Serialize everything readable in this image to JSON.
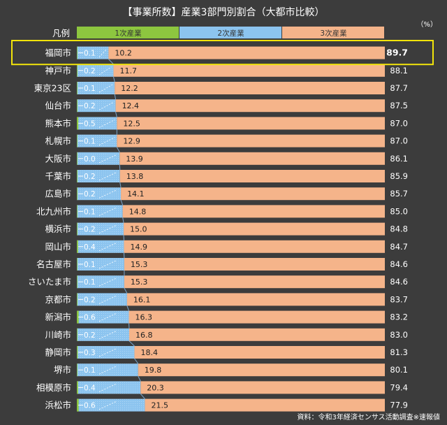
{
  "chart_data": {
    "type": "bar",
    "stacked": true,
    "orientation": "horizontal",
    "title": "【事業所数】産業3部門別割合（大都市比較）",
    "unit_label": "（%）",
    "legend_label": "凡例",
    "legend": [
      "1次産業",
      "2次産業",
      "3次産業"
    ],
    "source": "資料：令和3年経済センサス活動調査※速報値",
    "colors": {
      "primary": "#8dc63f",
      "secondary": "#8cc4ef",
      "tertiary": "#f5b48a",
      "highlight": "#f2e40a",
      "background": "#3c3c3c"
    },
    "highlight_city": "福岡市",
    "categories": [
      "福岡市",
      "神戸市",
      "東京23区",
      "仙台市",
      "熊本市",
      "札幌市",
      "大阪市",
      "千葉市",
      "広島市",
      "北九州市",
      "横浜市",
      "岡山市",
      "名古屋市",
      "さいたま市",
      "京都市",
      "新潟市",
      "川崎市",
      "静岡市",
      "堺市",
      "相模原市",
      "浜松市"
    ],
    "series": [
      {
        "name": "1次産業",
        "values": [
          0.1,
          0.2,
          0.1,
          0.2,
          0.5,
          0.1,
          0.0,
          0.2,
          0.2,
          0.1,
          0.2,
          0.4,
          0.1,
          0.1,
          0.2,
          0.6,
          0.2,
          0.3,
          0.1,
          0.4,
          0.6
        ]
      },
      {
        "name": "2次産業",
        "values": [
          10.2,
          11.7,
          12.2,
          12.4,
          12.5,
          12.9,
          13.9,
          13.8,
          14.1,
          14.8,
          15.0,
          14.9,
          15.3,
          15.3,
          16.1,
          16.3,
          16.8,
          18.4,
          19.8,
          20.3,
          21.5
        ]
      },
      {
        "name": "3次産業",
        "values": [
          89.7,
          88.1,
          87.7,
          87.5,
          87.0,
          87.0,
          86.1,
          85.9,
          85.7,
          85.0,
          84.8,
          84.7,
          84.6,
          84.6,
          83.7,
          83.2,
          83.0,
          81.3,
          80.1,
          79.4,
          77.9
        ]
      }
    ],
    "series_labels": {
      "primary": [
        "0.1",
        "0.2",
        "0.1",
        "0.2",
        "0.5",
        "0.1",
        "0.0",
        "0.2",
        "0.2",
        "0.1",
        "0.2",
        "0.4",
        "0.1",
        "0.1",
        "0.2",
        "0.6",
        "0.2",
        "0.3",
        "0.1",
        "0.4",
        "0.6"
      ],
      "secondary": [
        "10.2",
        "11.7",
        "12.2",
        "12.4",
        "12.5",
        "12.9",
        "13.9",
        "13.8",
        "14.1",
        "14.8",
        "15.0",
        "14.9",
        "15.3",
        "15.3",
        "16.1",
        "16.3",
        "16.8",
        "18.4",
        "19.8",
        "20.3",
        "21.5"
      ],
      "tertiary": [
        "89.7",
        "88.1",
        "87.7",
        "87.5",
        "87.0",
        "87.0",
        "86.1",
        "85.9",
        "85.7",
        "85.0",
        "84.8",
        "84.7",
        "84.6",
        "84.6",
        "83.7",
        "83.2",
        "83.0",
        "81.3",
        "80.1",
        "79.4",
        "77.9"
      ]
    },
    "xlim": [
      0,
      100
    ],
    "grid": false,
    "legend_position": "top"
  }
}
